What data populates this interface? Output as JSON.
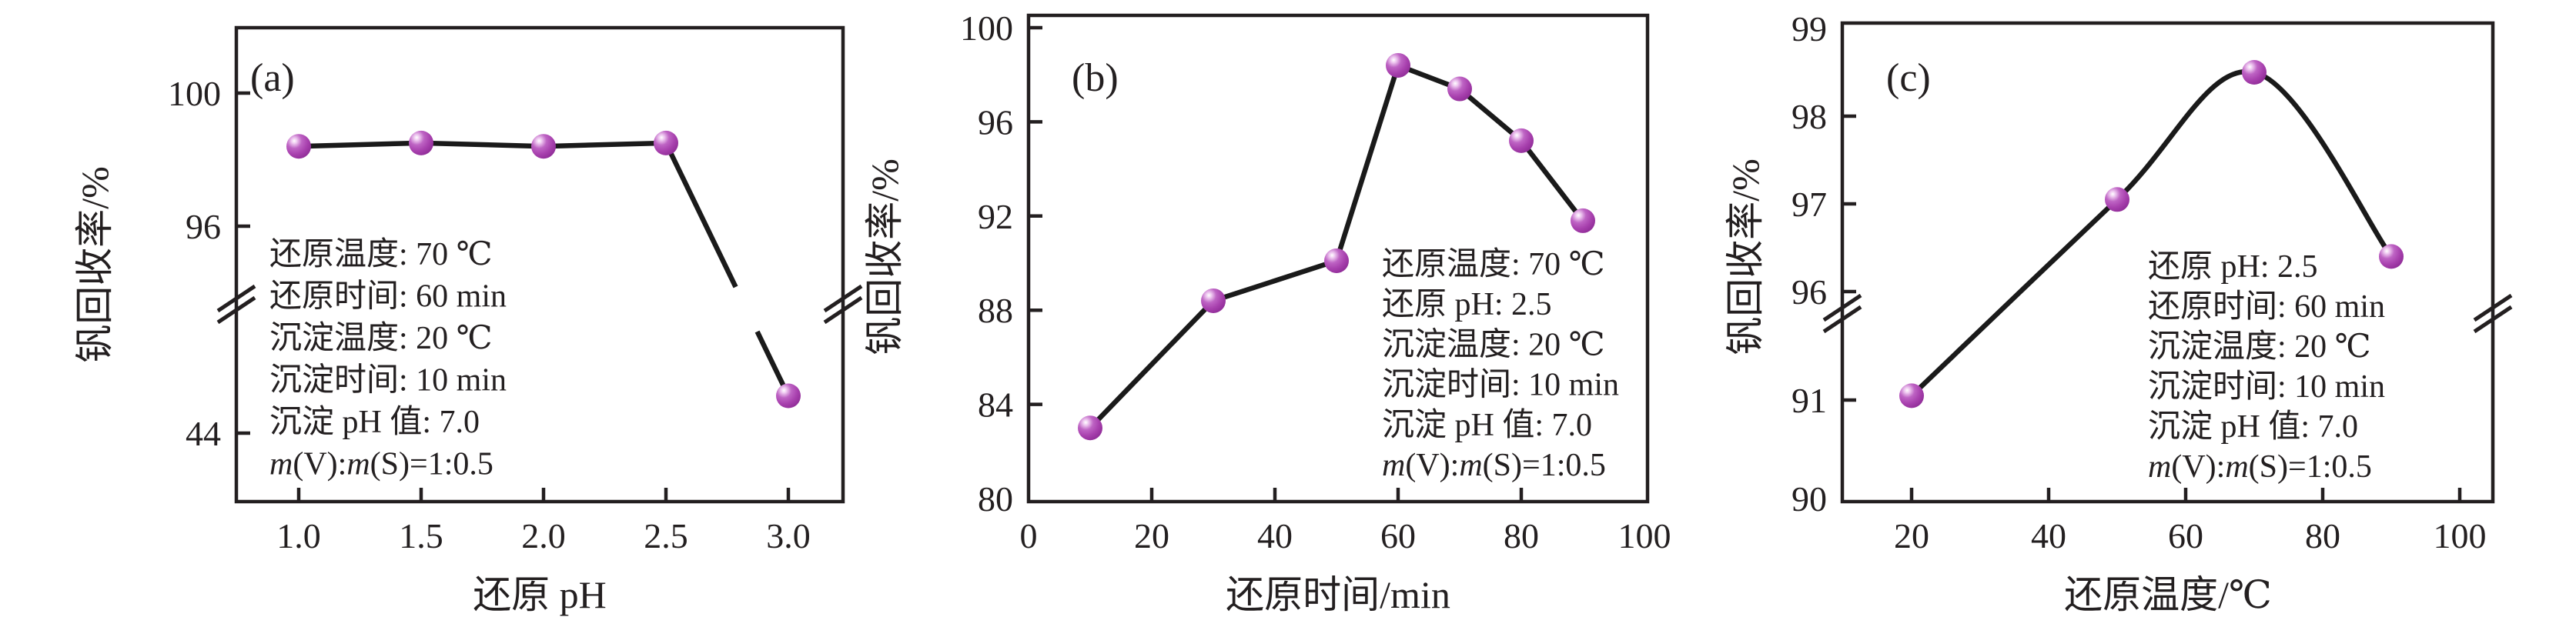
{
  "figure": {
    "background": "#ffffff",
    "ylabel_shared": "钒回收率/%"
  },
  "colors": {
    "marker": "#A841AE",
    "marker_edge": "#8E2B96",
    "marker_highlight": "#FFFFFF",
    "line": "#1A1A1A",
    "axis": "#231F20",
    "text": "#231F20",
    "background": "#FFFFFF"
  },
  "chart_data": [
    {
      "id": "a",
      "type": "line",
      "panel_label": "(a)",
      "xlabel": "还原 pH",
      "ylabel": "钒回收率/%",
      "x": [
        1.0,
        1.5,
        2.0,
        2.5,
        3.0
      ],
      "y": [
        98.4,
        98.5,
        98.4,
        98.5,
        45.0
      ],
      "x_tick_labels": [
        "1.0",
        "1.5",
        "2.0",
        "2.5",
        "3.0"
      ],
      "y_tick_labels": [
        "100",
        "96",
        "44"
      ],
      "axis_break": {
        "between_y_ticks": [
          "96",
          "44"
        ]
      },
      "smooth": false,
      "legend": null,
      "grid": false,
      "annotation_lines": [
        "还原温度: 70 ℃",
        "还原时间: 60 min",
        "沉淀温度: 20 ℃",
        "沉淀时间: 10 min",
        "沉淀 pH 值: 7.0",
        "m(V):m(S)=1:0.5"
      ]
    },
    {
      "id": "b",
      "type": "line",
      "panel_label": "(b)",
      "xlabel": "还原时间/min",
      "ylabel": "钒回收率/%",
      "x": [
        10,
        30,
        50,
        60,
        70,
        80,
        90
      ],
      "y": [
        83.0,
        88.4,
        90.1,
        98.4,
        97.4,
        95.2,
        91.8
      ],
      "x_tick_labels": [
        "0",
        "20",
        "40",
        "60",
        "80",
        "100"
      ],
      "y_tick_labels": [
        "100",
        "96",
        "92",
        "88",
        "84",
        "80"
      ],
      "axis_break": null,
      "smooth": false,
      "legend": null,
      "grid": false,
      "ylim": [
        80,
        100
      ],
      "xlim": [
        0,
        100
      ],
      "annotation_lines": [
        "还原温度: 70 ℃",
        "还原 pH: 2.5",
        "沉淀温度: 20 ℃",
        "沉淀时间: 10 min",
        "沉淀 pH 值: 7.0",
        "m(V):m(S)=1:0.5"
      ]
    },
    {
      "id": "c",
      "type": "line",
      "panel_label": "(c)",
      "xlabel": "还原温度/℃",
      "ylabel": "钒回收率/%",
      "x": [
        20,
        50,
        70,
        90
      ],
      "y": [
        91.2,
        97.05,
        98.5,
        96.4
      ],
      "x_tick_labels": [
        "20",
        "40",
        "60",
        "80",
        "100"
      ],
      "y_tick_labels": [
        "99",
        "98",
        "97",
        "96",
        "91",
        "90"
      ],
      "axis_break": {
        "between_y_ticks": [
          "96",
          "91"
        ]
      },
      "smooth": true,
      "legend": null,
      "grid": false,
      "annotation_lines": [
        "还原 pH: 2.5",
        "还原时间: 60 min",
        "沉淀温度: 20 ℃",
        "沉淀时间: 10 min",
        "沉淀 pH 值: 7.0",
        "m(V):m(S)=1:0.5"
      ]
    }
  ]
}
